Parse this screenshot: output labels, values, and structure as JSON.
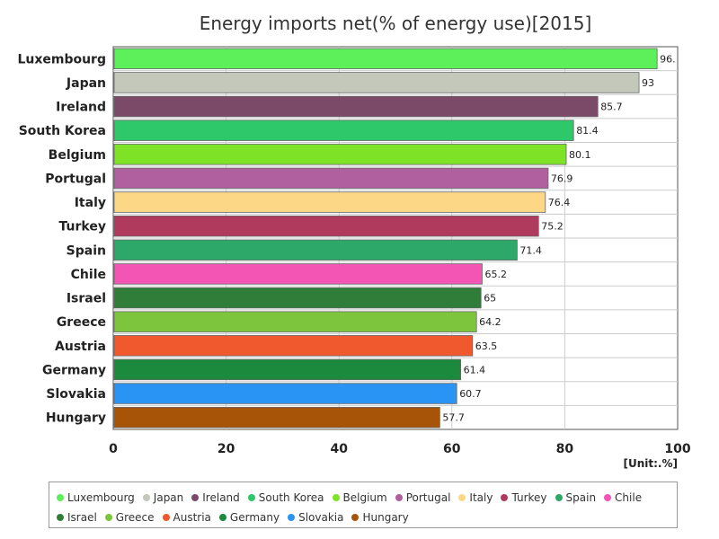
{
  "chart_data": {
    "type": "bar",
    "orientation": "horizontal",
    "title": "Energy imports net(% of energy use)[2015]",
    "unit_label": "[Unit:.%]",
    "xlim": [
      0,
      100
    ],
    "x_ticks": [
      0,
      20,
      40,
      60,
      80,
      100
    ],
    "grid": true,
    "legend_placement": "bottom",
    "categories": [
      "Luxembourg",
      "Japan",
      "Ireland",
      "South Korea",
      "Belgium",
      "Portugal",
      "Italy",
      "Turkey",
      "Spain",
      "Chile",
      "Israel",
      "Greece",
      "Austria",
      "Germany",
      "Slovakia",
      "Hungary"
    ],
    "values": [
      96.2,
      93,
      85.7,
      81.4,
      80.1,
      76.9,
      76.4,
      75.2,
      71.4,
      65.2,
      65,
      64.2,
      63.5,
      61.4,
      60.7,
      57.7
    ],
    "value_labels": [
      "96.",
      "93",
      "85.7",
      "81.4",
      "80.1",
      "76.9",
      "76.4",
      "75.2",
      "71.4",
      "65.2",
      "65",
      "64.2",
      "63.5",
      "61.4",
      "60.7",
      "57.7"
    ],
    "colors": [
      "#5ef05a",
      "#c3c8bb",
      "#7a4a68",
      "#2ec76a",
      "#7ee227",
      "#b0609e",
      "#fcd886",
      "#b03a5e",
      "#2ea868",
      "#f255b4",
      "#2f7d38",
      "#7ec53e",
      "#f0582e",
      "#1b8a3c",
      "#2a94f4",
      "#a85408"
    ]
  }
}
